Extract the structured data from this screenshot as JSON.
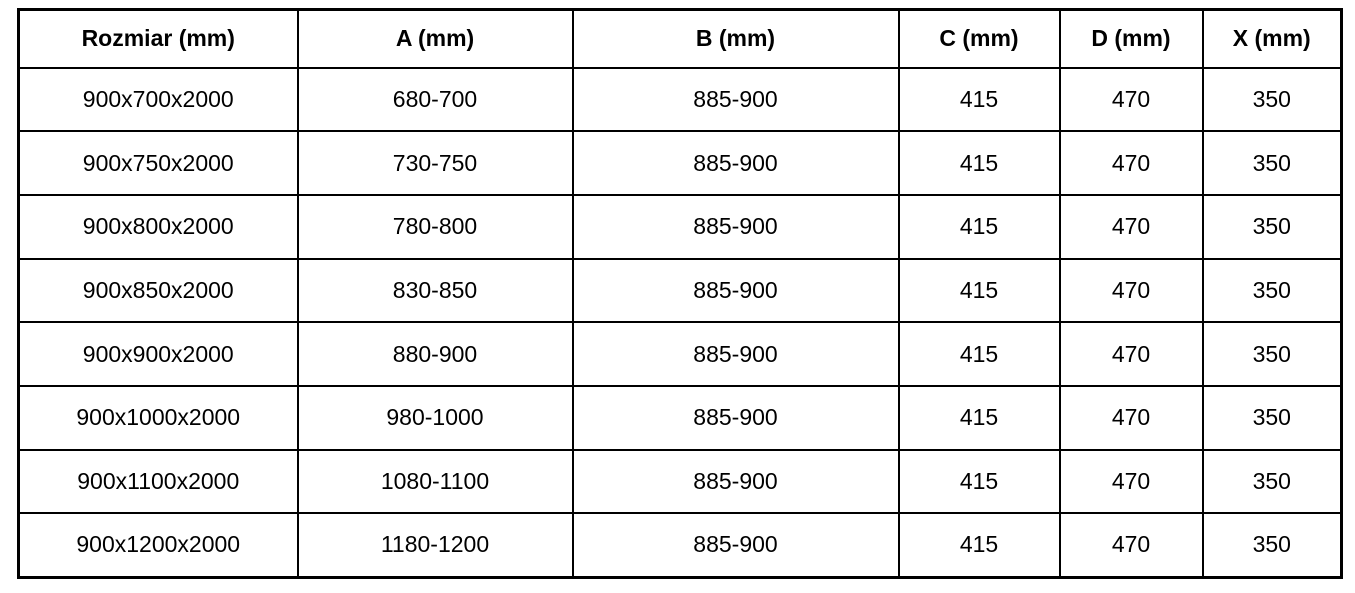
{
  "table": {
    "headers": [
      {
        "key": "rozmiar",
        "label": "Rozmiar (mm)"
      },
      {
        "key": "a",
        "label": "A (mm)"
      },
      {
        "key": "b",
        "label": "B (mm)"
      },
      {
        "key": "c",
        "label": "C (mm)"
      },
      {
        "key": "d",
        "label": "D (mm)"
      },
      {
        "key": "x",
        "label": "X (mm)"
      }
    ],
    "rows": [
      [
        "900x700x2000",
        "680-700",
        "885-900",
        "415",
        "470",
        "350"
      ],
      [
        "900x750x2000",
        "730-750",
        "885-900",
        "415",
        "470",
        "350"
      ],
      [
        "900x800x2000",
        "780-800",
        "885-900",
        "415",
        "470",
        "350"
      ],
      [
        "900x850x2000",
        "830-850",
        "885-900",
        "415",
        "470",
        "350"
      ],
      [
        "900x900x2000",
        "880-900",
        "885-900",
        "415",
        "470",
        "350"
      ],
      [
        "900x1000x2000",
        "980-1000",
        "885-900",
        "415",
        "470",
        "350"
      ],
      [
        "900x1100x2000",
        "1080-1100",
        "885-900",
        "415",
        "470",
        "350"
      ],
      [
        "900x1200x2000",
        "1180-1200",
        "885-900",
        "415",
        "470",
        "350"
      ]
    ]
  },
  "colors": {
    "border": "#000000",
    "text": "#000000",
    "background": "#ffffff"
  }
}
